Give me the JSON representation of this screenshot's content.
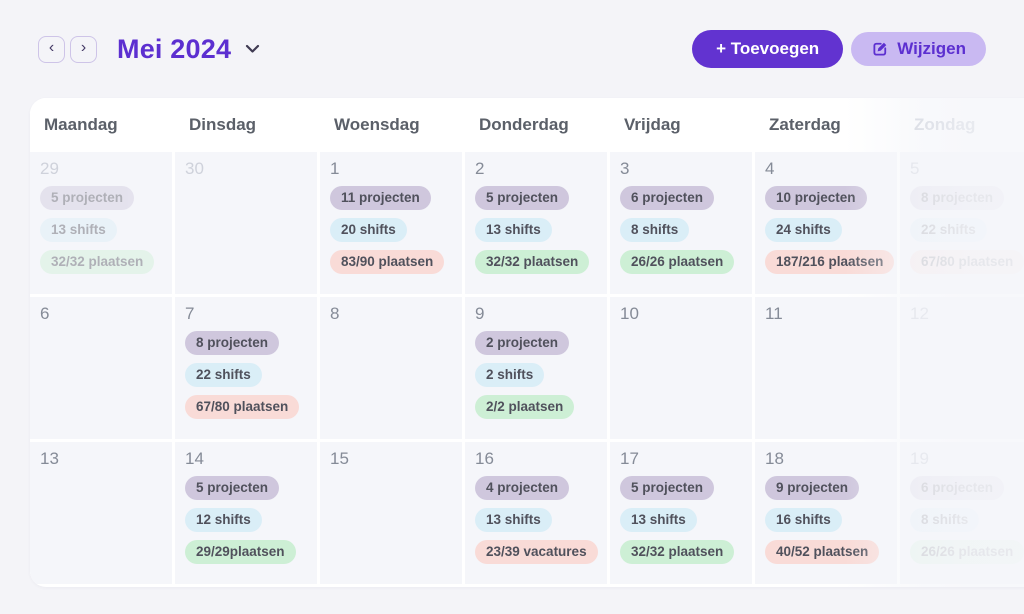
{
  "header": {
    "prev_label": "‹",
    "next_label": "›",
    "title": "Mei 2024",
    "add_button": "+ Toevoegen",
    "edit_button": "Wijzigen"
  },
  "calendar": {
    "weekdays": [
      "Maandag",
      "Dinsdag",
      "Woensdag",
      "Donderdag",
      "Vrijdag",
      "Zaterdag",
      "Zondag"
    ],
    "weeks": [
      [
        {
          "day": "29",
          "muted": true,
          "badges": [
            {
              "text": "5 projecten",
              "type": "projects"
            },
            {
              "text": "13 shifts",
              "type": "shifts"
            },
            {
              "text": "32/32 plaatsen",
              "type": "full"
            }
          ]
        },
        {
          "day": "30",
          "muted": true,
          "badges": []
        },
        {
          "day": "1",
          "badges": [
            {
              "text": "11 projecten",
              "type": "projects"
            },
            {
              "text": "20 shifts",
              "type": "shifts"
            },
            {
              "text": "83/90 plaatsen",
              "type": "open"
            }
          ]
        },
        {
          "day": "2",
          "badges": [
            {
              "text": "5 projecten",
              "type": "projects"
            },
            {
              "text": "13 shifts",
              "type": "shifts"
            },
            {
              "text": "32/32 plaatsen",
              "type": "full"
            }
          ]
        },
        {
          "day": "3",
          "badges": [
            {
              "text": "6 projecten",
              "type": "projects"
            },
            {
              "text": "8 shifts",
              "type": "shifts"
            },
            {
              "text": "26/26 plaatsen",
              "type": "full"
            }
          ]
        },
        {
          "day": "4",
          "badges": [
            {
              "text": "10 projecten",
              "type": "projects"
            },
            {
              "text": "24 shifts",
              "type": "shifts"
            },
            {
              "text": "187/216 plaatsen",
              "type": "open"
            }
          ]
        },
        {
          "day": "5",
          "muted": true,
          "badges": [
            {
              "text": "8 projecten",
              "type": "projects"
            },
            {
              "text": "22 shifts",
              "type": "shifts"
            },
            {
              "text": "67/80 plaatsen",
              "type": "open"
            }
          ]
        }
      ],
      [
        {
          "day": "6",
          "badges": []
        },
        {
          "day": "7",
          "badges": [
            {
              "text": "8 projecten",
              "type": "projects"
            },
            {
              "text": "22 shifts",
              "type": "shifts"
            },
            {
              "text": "67/80 plaatsen",
              "type": "open"
            }
          ]
        },
        {
          "day": "8",
          "badges": []
        },
        {
          "day": "9",
          "badges": [
            {
              "text": "2 projecten",
              "type": "projects"
            },
            {
              "text": "2 shifts",
              "type": "shifts"
            },
            {
              "text": "2/2 plaatsen",
              "type": "full"
            }
          ]
        },
        {
          "day": "10",
          "badges": []
        },
        {
          "day": "11",
          "badges": []
        },
        {
          "day": "12",
          "muted": true,
          "badges": []
        }
      ],
      [
        {
          "day": "13",
          "badges": []
        },
        {
          "day": "14",
          "badges": [
            {
              "text": "5 projecten",
              "type": "projects"
            },
            {
              "text": "12 shifts",
              "type": "shifts"
            },
            {
              "text": "29/29plaatsen",
              "type": "full"
            }
          ]
        },
        {
          "day": "15",
          "badges": []
        },
        {
          "day": "16",
          "badges": [
            {
              "text": "4 projecten",
              "type": "projects"
            },
            {
              "text": "13 shifts",
              "type": "shifts"
            },
            {
              "text": "23/39 vacatures",
              "type": "open"
            }
          ]
        },
        {
          "day": "17",
          "badges": [
            {
              "text": "5 projecten",
              "type": "projects"
            },
            {
              "text": "13 shifts",
              "type": "shifts"
            },
            {
              "text": "32/32 plaatsen",
              "type": "full"
            }
          ]
        },
        {
          "day": "18",
          "badges": [
            {
              "text": "9 projecten",
              "type": "projects"
            },
            {
              "text": "16 shifts",
              "type": "shifts"
            },
            {
              "text": "40/52 plaatsen",
              "type": "open"
            }
          ]
        },
        {
          "day": "19",
          "muted": true,
          "badges": [
            {
              "text": "6 projecten",
              "type": "projects"
            },
            {
              "text": "8 shifts",
              "type": "shifts"
            },
            {
              "text": "26/26 plaatsen",
              "type": "full"
            }
          ]
        }
      ]
    ]
  },
  "theme": {
    "page_bg": "#f4f4f8",
    "accent": "#5c2fd0",
    "btn_primary_bg": "#6233d0",
    "btn_secondary_bg": "#c9b9f2",
    "nav_border": "#cec4e8",
    "nav_chevron": "#453a66",
    "cell_bg": "#f5f6fa",
    "weekday_text": "#5b6069",
    "weekday_muted": "#b6bcc8",
    "daynum": "#858b97",
    "daynum_muted": "#cfd2db",
    "badge_text": "#50515c",
    "badge_projects_bg": "#cfc7dd",
    "badge_shifts_bg": "#daeef7",
    "badge_full_bg": "#cdefd5",
    "badge_open_bg": "#f9dbd7"
  }
}
